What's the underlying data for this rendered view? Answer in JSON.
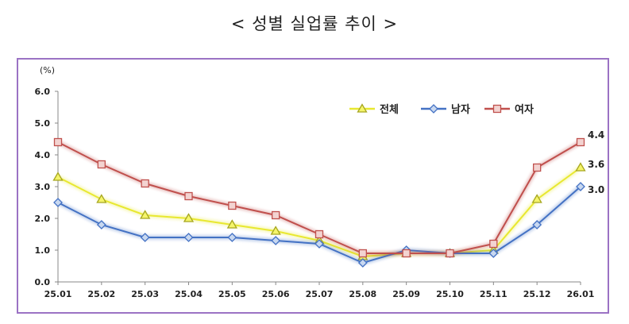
{
  "title": "< 성별 실업률 추이 >",
  "chart_data": {
    "type": "line",
    "unit_label": "(%)",
    "categories": [
      "25.01",
      "25.02",
      "25.03",
      "25.04",
      "25.05",
      "25.06",
      "25.07",
      "25.08",
      "25.09",
      "25.10",
      "25.11",
      "25.12",
      "26.01"
    ],
    "ylim": [
      0,
      6
    ],
    "yticks": [
      "0.0",
      "1.0",
      "2.0",
      "3.0",
      "4.0",
      "5.0",
      "6.0"
    ],
    "grid": false,
    "legend_position": "top-right",
    "series": [
      {
        "name": "전체",
        "color": "#e8e830",
        "marker": "triangle",
        "values": [
          3.3,
          2.6,
          2.1,
          2.0,
          1.8,
          1.6,
          1.3,
          0.8,
          0.9,
          0.9,
          1.0,
          2.6,
          3.6
        ]
      },
      {
        "name": "남자",
        "color": "#4472c4",
        "marker": "diamond",
        "values": [
          2.5,
          1.8,
          1.4,
          1.4,
          1.4,
          1.3,
          1.2,
          0.6,
          1.0,
          0.9,
          0.9,
          1.8,
          3.0
        ]
      },
      {
        "name": "여자",
        "color": "#c0504d",
        "marker": "square",
        "values": [
          4.4,
          3.7,
          3.1,
          2.7,
          2.4,
          2.1,
          1.5,
          0.9,
          0.9,
          0.9,
          1.2,
          3.6,
          4.4
        ]
      }
    ],
    "end_labels": [
      "4.4",
      "3.6",
      "3.0"
    ]
  }
}
